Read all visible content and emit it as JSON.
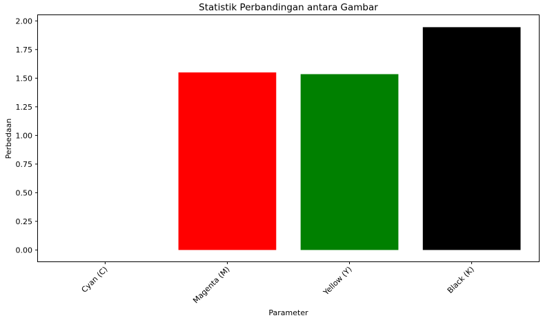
{
  "chart_data": {
    "type": "bar",
    "title": "Statistik Perbandingan antara Gambar",
    "xlabel": "Parameter",
    "ylabel": "Perbedaan",
    "categories": [
      "Cyan (C)",
      "Magenta (M)",
      "Yellow (Y)",
      "Black (K)"
    ],
    "values": [
      0.0,
      1.55,
      1.535,
      1.945
    ],
    "colors": [
      "#00ffff",
      "#ff0000",
      "#008000",
      "#000000"
    ],
    "ylim": [
      -0.1,
      2.05
    ],
    "yticks": [
      "0.00",
      "0.25",
      "0.50",
      "0.75",
      "1.00",
      "1.25",
      "1.50",
      "1.75",
      "2.00"
    ],
    "grid": false,
    "legend": "none"
  }
}
